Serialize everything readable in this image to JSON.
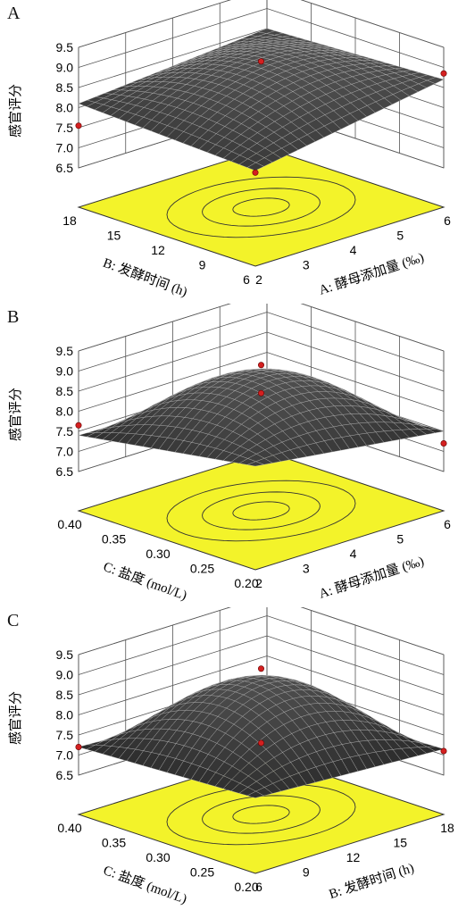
{
  "chart_data": [
    {
      "panel": "A",
      "type": "surface3d",
      "zlabel": "感官评分",
      "zticks": [
        "9.5",
        "9.0",
        "8.5",
        "8.0",
        "7.5",
        "7.0",
        "6.5"
      ],
      "zlim": [
        6.5,
        9.5
      ],
      "x": {
        "label": "A: 酵母添加量 (‰)",
        "ticks": [
          "2",
          "3",
          "4",
          "5",
          "6"
        ],
        "range": [
          2,
          6
        ]
      },
      "y": {
        "label": "B: 发酵时间 (h)",
        "ticks": [
          "6",
          "9",
          "12",
          "15",
          "18"
        ],
        "range": [
          6,
          18
        ]
      },
      "corner_values": {
        "x_min_y_min": 7.9,
        "x_max_y_min": 8.7,
        "x_min_y_max": 8.1,
        "x_max_y_max": 8.5
      },
      "peak_value": 9.05,
      "points": [
        {
          "x": 4,
          "y": 12,
          "z": 9.15
        },
        {
          "x": 6,
          "y": 6,
          "z": 8.85
        },
        {
          "x": 2,
          "y": 6,
          "z": 7.85
        },
        {
          "x": 2,
          "y": 18,
          "z": 7.55
        }
      ],
      "floor_color": "#f3f32a"
    },
    {
      "panel": "B",
      "type": "surface3d",
      "zlabel": "感官评分",
      "zticks": [
        "9.5",
        "9.0",
        "8.5",
        "8.0",
        "7.5",
        "7.0",
        "6.5"
      ],
      "zlim": [
        6.5,
        9.5
      ],
      "x": {
        "label": "A: 酵母添加量 (‰)",
        "ticks": [
          "2",
          "3",
          "4",
          "5",
          "6"
        ],
        "range": [
          2,
          6
        ]
      },
      "y": {
        "label": "C: 盐度 (mol/L)",
        "ticks": [
          "0.20",
          "0.25",
          "0.30",
          "0.35",
          "0.40"
        ],
        "range": [
          0.2,
          0.4
        ]
      },
      "corner_values": {
        "x_min_y_min": 8.1,
        "x_max_y_min": 7.5,
        "x_min_y_max": 7.4,
        "x_max_y_max": 7.3
      },
      "peak_value": 9.1,
      "points": [
        {
          "x": 4,
          "y": 0.3,
          "z": 9.15
        },
        {
          "x": 4,
          "y": 0.3,
          "z": 8.45
        },
        {
          "x": 2,
          "y": 0.4,
          "z": 7.65
        },
        {
          "x": 6,
          "y": 0.2,
          "z": 7.2
        }
      ],
      "floor_color": "#f3f32a"
    },
    {
      "panel": "C",
      "type": "surface3d",
      "zlabel": "感官评分",
      "zticks": [
        "9.5",
        "9.0",
        "8.5",
        "8.0",
        "7.5",
        "7.0",
        "6.5"
      ],
      "zlim": [
        6.5,
        9.5
      ],
      "x": {
        "label": "B: 发酵时间 (h)",
        "ticks": [
          "6",
          "9",
          "12",
          "15",
          "18"
        ],
        "range": [
          6,
          18
        ]
      },
      "y": {
        "label": "C: 盐度 (mol/L)",
        "ticks": [
          "0.20",
          "0.25",
          "0.30",
          "0.35",
          "0.40"
        ],
        "range": [
          0.2,
          0.4
        ]
      },
      "corner_values": {
        "x_min_y_min": 7.4,
        "x_max_y_min": 7.15,
        "x_min_y_max": 7.2,
        "x_max_y_max": 7.0
      },
      "peak_value": 9.05,
      "points": [
        {
          "x": 12,
          "y": 0.3,
          "z": 9.15
        },
        {
          "x": 12,
          "y": 0.3,
          "z": 7.3
        },
        {
          "x": 18,
          "y": 0.2,
          "z": 7.1
        },
        {
          "x": 6,
          "y": 0.4,
          "z": 7.2
        }
      ],
      "floor_color": "#f3f32a"
    }
  ],
  "panels": [
    {
      "letter": "A"
    },
    {
      "letter": "B"
    },
    {
      "letter": "C"
    }
  ]
}
